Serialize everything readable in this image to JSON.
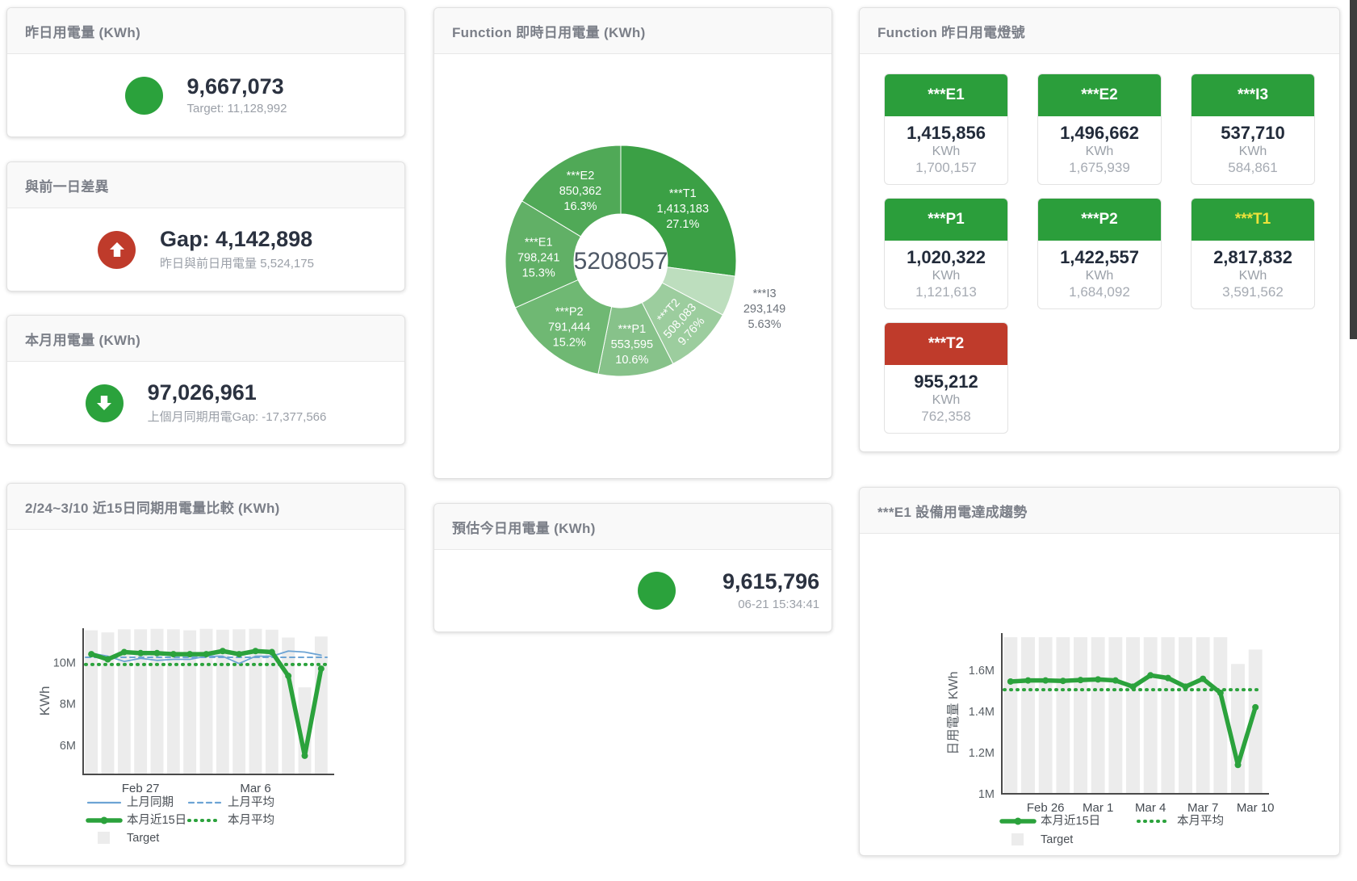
{
  "colors": {
    "green": "#2ba23c",
    "red": "#bf3b2b",
    "blue": "#6da4d4",
    "target_gray": "#ececec",
    "tile_green": "#2b9e3b",
    "tile_red": "#bf3b2b"
  },
  "kpi_cards": {
    "yesterday": {
      "title": "昨日用電量 (KWh)",
      "value": "9,667,073",
      "sub": "Target: 11,128,992",
      "status_color": "#2ba23c",
      "arrow": "none"
    },
    "day_gap": {
      "title": "與前一日差異",
      "value": "Gap: 4,142,898",
      "sub": "昨日與前日用電量 5,524,175",
      "status_color": "#bf3b2b",
      "arrow": "up"
    },
    "month": {
      "title": "本月用電量 (KWh)",
      "value": "97,026,961",
      "sub": "上個月同期用電Gap: -17,377,566",
      "status_color": "#2ba23c",
      "arrow": "down"
    },
    "estimate": {
      "title": "預估今日用電量 (KWh)",
      "value": "9,615,796",
      "sub": "06-21 15:34:41",
      "status_color": "#2ba23c",
      "arrow": "none"
    }
  },
  "donut_card": {
    "title": "Function 即時日用電量 (KWh)",
    "center_total": "5208057"
  },
  "lights_card": {
    "title": "Function 昨日用電燈號",
    "unit": "KWh",
    "tiles": [
      {
        "label": "***E1",
        "value": "1,415,856",
        "prev": "1,700,157",
        "state": "green",
        "label_color": "#ffffff"
      },
      {
        "label": "***E2",
        "value": "1,496,662",
        "prev": "1,675,939",
        "state": "green",
        "label_color": "#ffffff"
      },
      {
        "label": "***I3",
        "value": "537,710",
        "prev": "584,861",
        "state": "green",
        "label_color": "#ffffff"
      },
      {
        "label": "***P1",
        "value": "1,020,322",
        "prev": "1,121,613",
        "state": "green",
        "label_color": "#ffffff"
      },
      {
        "label": "***P2",
        "value": "1,422,557",
        "prev": "1,684,092",
        "state": "green",
        "label_color": "#ffffff"
      },
      {
        "label": "***T1",
        "value": "2,817,832",
        "prev": "3,591,562",
        "state": "green",
        "label_color": "#ece23b"
      },
      {
        "label": "***T2",
        "value": "955,212",
        "prev": "762,358",
        "state": "red",
        "label_color": "#ffffff"
      }
    ]
  },
  "compare_card": {
    "title": "2/24~3/10 近15日同期用電量比較 (KWh)"
  },
  "trend_card": {
    "title": "***E1 設備用電達成趨勢"
  },
  "chart_data": [
    {
      "type": "pie",
      "title": "Function 即時日用電量 (KWh)",
      "center_label": "5208057",
      "slices": [
        {
          "name": "***T1",
          "value": 1413183,
          "value_label": "1,413,183",
          "pct": "27.1%",
          "color": "#3ba045",
          "outside": false
        },
        {
          "name": "***I3",
          "value": 293149,
          "value_label": "293,149",
          "pct": "5.63%",
          "color": "#bddebe",
          "outside": true
        },
        {
          "name": "***T2",
          "value": 508083,
          "value_label": "508,083",
          "pct": "9.76%",
          "color": "#9ccd9e",
          "outside": false,
          "label_rotate": -48
        },
        {
          "name": "***P1",
          "value": 553595,
          "value_label": "553,595",
          "pct": "10.6%",
          "color": "#87c28a",
          "outside": false
        },
        {
          "name": "***P2",
          "value": 791444,
          "value_label": "791,444",
          "pct": "15.2%",
          "color": "#6fb873",
          "outside": false
        },
        {
          "name": "***E1",
          "value": 798241,
          "value_label": "798,241",
          "pct": "15.3%",
          "color": "#61b066",
          "outside": false
        },
        {
          "name": "***E2",
          "value": 850362,
          "value_label": "850,362",
          "pct": "16.3%",
          "color": "#50a957",
          "outside": false
        }
      ]
    },
    {
      "type": "line",
      "title": "2/24~3/10 近15日同期用電量比較 (KWh)",
      "ylabel": "KWh",
      "ylim": [
        4600000,
        11650000
      ],
      "yticks": [
        {
          "value": 6000000,
          "label": "6M"
        },
        {
          "value": 8000000,
          "label": "8M"
        },
        {
          "value": 10000000,
          "label": "10M"
        }
      ],
      "x_days": 15,
      "xticks": [
        {
          "index": 3,
          "label": "Feb 27"
        },
        {
          "index": 10,
          "label": "Mar 6"
        }
      ],
      "series": [
        {
          "name": "Target",
          "type": "bar",
          "color": "#ececec",
          "values": [
            11550000,
            11450000,
            11600000,
            11600000,
            11620000,
            11600000,
            11550000,
            11620000,
            11580000,
            11600000,
            11620000,
            11580000,
            11200000,
            8800000,
            11250000
          ]
        },
        {
          "name": "上月同期",
          "type": "line",
          "style": "solid",
          "color": "#6da4d4",
          "width": 1.8,
          "values": [
            10450000,
            10300000,
            10050000,
            10200000,
            10100000,
            10150000,
            10150000,
            10300000,
            10300000,
            9950000,
            10300000,
            10300000,
            10550000,
            10500000,
            10350000
          ]
        },
        {
          "name": "上月平均",
          "type": "line",
          "style": "dashed",
          "color": "#6da4d4",
          "width": 2,
          "constant": 10250000
        },
        {
          "name": "本月近15日",
          "type": "line",
          "style": "solid",
          "color": "#2ba23c",
          "width": 5.5,
          "markers": true,
          "values": [
            10400000,
            10150000,
            10500000,
            10450000,
            10450000,
            10400000,
            10400000,
            10400000,
            10550000,
            10400000,
            10550000,
            10500000,
            9350000,
            5500000,
            9700000
          ]
        },
        {
          "name": "本月平均",
          "type": "line",
          "style": "dotted",
          "color": "#2ba23c",
          "width": 3.5,
          "constant": 9900000
        }
      ],
      "legend_rows": [
        [
          "上月同期",
          "上月平均"
        ],
        [
          "本月近15日",
          "本月平均"
        ],
        [
          "Target"
        ]
      ]
    },
    {
      "type": "line",
      "title": "***E1 設備用電達成趨勢",
      "ylabel": "日用電量 KWh",
      "ylim": [
        1000000,
        1780000
      ],
      "yticks": [
        {
          "value": 1000000,
          "label": "1M"
        },
        {
          "value": 1200000,
          "label": "1.2M"
        },
        {
          "value": 1400000,
          "label": "1.4M"
        },
        {
          "value": 1600000,
          "label": "1.6M"
        }
      ],
      "x_days": 15,
      "xticks": [
        {
          "index": 2,
          "label": "Feb 26"
        },
        {
          "index": 5,
          "label": "Mar 1"
        },
        {
          "index": 8,
          "label": "Mar 4"
        },
        {
          "index": 11,
          "label": "Mar 7"
        },
        {
          "index": 14,
          "label": "Mar 10"
        }
      ],
      "series": [
        {
          "name": "Target",
          "type": "bar",
          "color": "#ececec",
          "values": [
            1760000,
            1760000,
            1760000,
            1760000,
            1760000,
            1760000,
            1760000,
            1760000,
            1760000,
            1760000,
            1760000,
            1760000,
            1760000,
            1630000,
            1700000
          ]
        },
        {
          "name": "本月近15日",
          "type": "line",
          "style": "solid",
          "color": "#2ba23c",
          "width": 5.5,
          "markers": true,
          "values": [
            1545000,
            1550000,
            1550000,
            1548000,
            1552000,
            1555000,
            1550000,
            1520000,
            1575000,
            1562000,
            1520000,
            1558000,
            1490000,
            1140000,
            1420000
          ]
        },
        {
          "name": "本月平均",
          "type": "line",
          "style": "dotted",
          "color": "#2ba23c",
          "width": 3.5,
          "constant": 1505000
        }
      ],
      "legend_rows": [
        [
          "本月近15日",
          "本月平均"
        ],
        [
          "Target"
        ]
      ]
    }
  ]
}
